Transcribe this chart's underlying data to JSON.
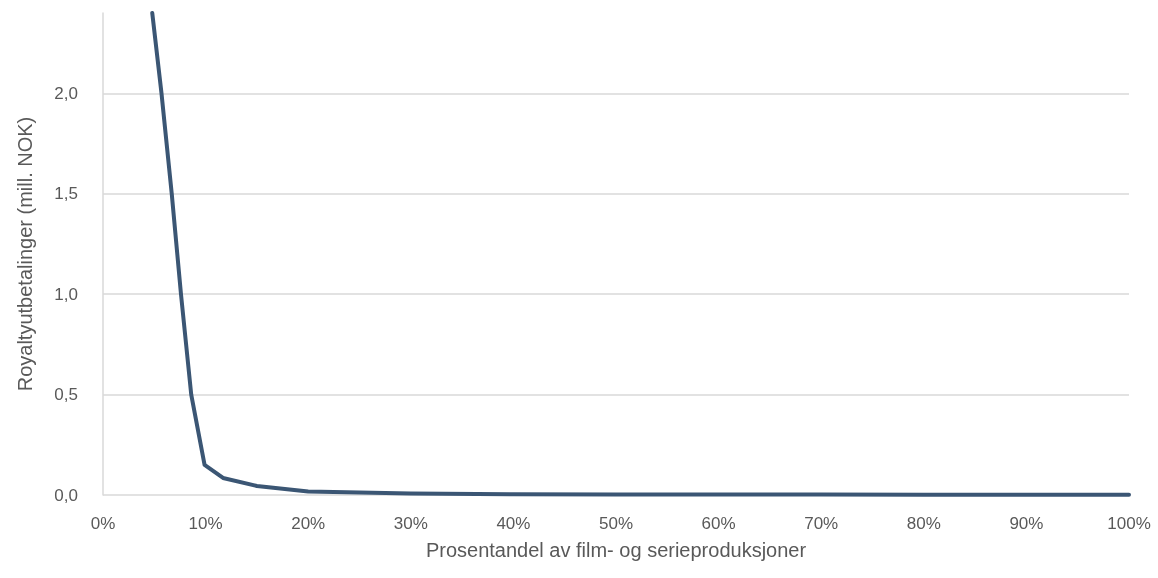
{
  "chart_data": {
    "type": "line",
    "xlabel": "Prosentandel av film- og serieproduksjoner",
    "ylabel": "Royaltyutbetalinger (mill. NOK)",
    "x": [
      4.8,
      5.7,
      6.7,
      7.6,
      8.6,
      9.9,
      11.7,
      15,
      20,
      30,
      40,
      50,
      60,
      70,
      80,
      90,
      100
    ],
    "series": [
      {
        "color": "#3b5674",
        "values": [
          2.4,
          2.0,
          1.5,
          1.0,
          0.5,
          0.15,
          0.085,
          0.045,
          0.017,
          0.008,
          0.004,
          0.003,
          0.002,
          0.002,
          0.001,
          0.001,
          0.001
        ]
      }
    ],
    "xlim": [
      0,
      100
    ],
    "xticks": [
      {
        "value": 0,
        "label": "0%"
      },
      {
        "value": 10,
        "label": "10%"
      },
      {
        "value": 20,
        "label": "20%"
      },
      {
        "value": 30,
        "label": "30%"
      },
      {
        "value": 40,
        "label": "40%"
      },
      {
        "value": 50,
        "label": "50%"
      },
      {
        "value": 60,
        "label": "60%"
      },
      {
        "value": 70,
        "label": "70%"
      },
      {
        "value": 80,
        "label": "80%"
      },
      {
        "value": 90,
        "label": "90%"
      },
      {
        "value": 100,
        "label": "100%"
      }
    ],
    "ylim": [
      0,
      2.4
    ],
    "yticks": [
      {
        "value": 0,
        "label": "0,0"
      },
      {
        "value": 0.5,
        "label": "0,5"
      },
      {
        "value": 1,
        "label": "1,0"
      },
      {
        "value": 1.5,
        "label": "1,5"
      },
      {
        "value": 2,
        "label": "2,0"
      }
    ],
    "grid": "y",
    "marker": "none",
    "line_style": "solid"
  }
}
